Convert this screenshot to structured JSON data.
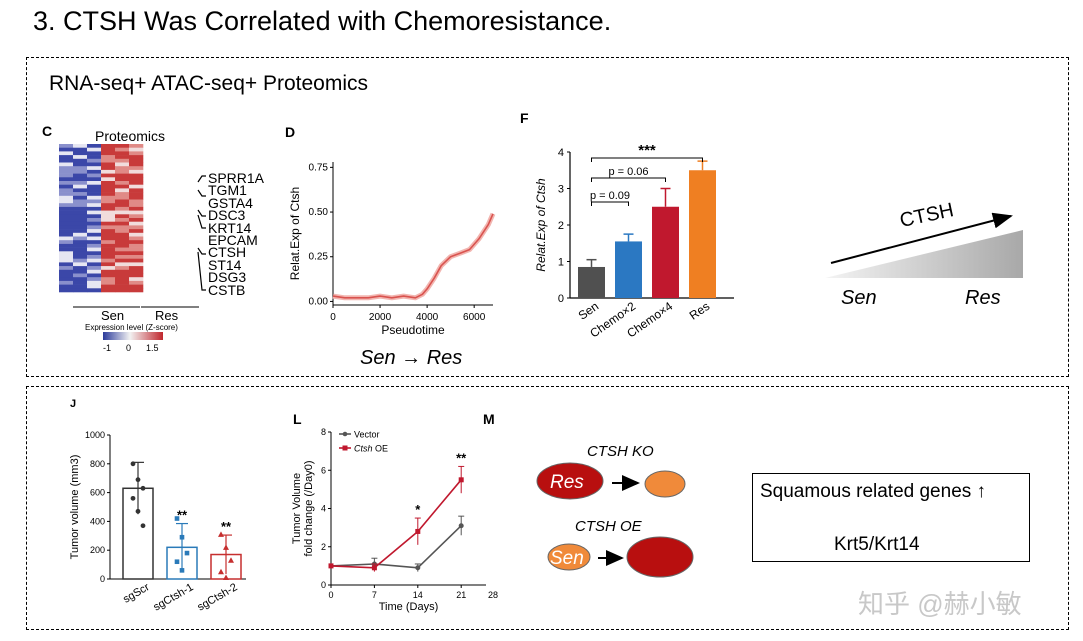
{
  "slide": {
    "title": "3. CTSH Was Correlated with Chemoresistance.",
    "subtitle": "RNA-seq+ ATAC-seq+ Proteomics"
  },
  "panel_c": {
    "letter": "C",
    "title": "Proteomics",
    "groups": [
      "Sen",
      "Res"
    ],
    "genes": [
      "SPRR1A",
      "TGM1",
      "GSTA4",
      "DSC3",
      "KRT14",
      "EPCAM",
      "CTSH",
      "ST14",
      "DSG3",
      "CSTB"
    ],
    "colorbar_label": "Expression level (Z-score)",
    "colorbar_ticks": [
      "-1",
      "0",
      "1.5"
    ],
    "colors": {
      "low": "#2b3a9b",
      "mid": "#f2f2f2",
      "high": "#c0272d"
    }
  },
  "panel_d": {
    "letter": "D",
    "caption": "Sen → Res"
  },
  "panel_f": {
    "letter": "F",
    "stars": "***",
    "p1": "p = 0.06",
    "p2": "p = 0.09"
  },
  "panel_j": {
    "letter": "J"
  },
  "panel_l": {
    "letter": "L"
  },
  "panel_m": {
    "letter": "M"
  },
  "trend": {
    "label": "CTSH",
    "left": "Sen",
    "right": "Res"
  },
  "ko_oe": {
    "ko_label": "CTSH KO",
    "oe_label": "CTSH OE",
    "res_label": "Res",
    "sen_label": "Sen",
    "colors": {
      "res": "#b80f0f",
      "sen": "#f08a3a"
    }
  },
  "conclusion": {
    "line1": "Squamous related genes ↑",
    "line2": "Krt5/Krt14"
  },
  "watermark": "知乎 @赫小敏",
  "chart_data": [
    {
      "id": "D",
      "type": "line",
      "title": "",
      "xlabel": "Pseudotime",
      "ylabel": "Relat.Exp of Ctsh",
      "xlim": [
        0,
        6800
      ],
      "ylim": [
        -0.02,
        0.78
      ],
      "xticks": [
        0,
        2000,
        4000,
        6000
      ],
      "yticks": [
        0.0,
        0.25,
        0.5,
        0.75
      ],
      "ytick_labels": [
        "0.00",
        "0.25",
        "0.50",
        "0.75"
      ],
      "series": [
        {
          "name": "Ctsh",
          "color": "#d9534f",
          "x": [
            0,
            500,
            1000,
            1500,
            2000,
            2500,
            3000,
            3500,
            3800,
            4000,
            4300,
            4600,
            5000,
            5400,
            5800,
            6200,
            6600,
            6800
          ],
          "y": [
            0.03,
            0.02,
            0.02,
            0.02,
            0.03,
            0.02,
            0.03,
            0.02,
            0.04,
            0.07,
            0.13,
            0.2,
            0.25,
            0.27,
            0.29,
            0.35,
            0.43,
            0.49
          ]
        }
      ]
    },
    {
      "id": "F",
      "type": "bar",
      "title": "",
      "xlabel": "",
      "ylabel": "Relat.Exp of Ctsh",
      "ylim": [
        0,
        4
      ],
      "yticks": [
        0,
        1,
        2,
        3,
        4
      ],
      "categories": [
        "Sen",
        "Chemo×2",
        "Chemo×4",
        "Res"
      ],
      "values": [
        0.85,
        1.55,
        2.5,
        3.5
      ],
      "errors": [
        0.2,
        0.2,
        0.5,
        0.25
      ],
      "colors": [
        "#505050",
        "#2b78c2",
        "#c0182e",
        "#ef7f22"
      ],
      "annotations": [
        "***",
        "p = 0.06",
        "p = 0.09"
      ]
    },
    {
      "id": "J",
      "type": "bar",
      "title": "",
      "xlabel": "",
      "ylabel": "Tumor volume (mm3)",
      "ylim": [
        0,
        1000
      ],
      "yticks": [
        0,
        200,
        400,
        600,
        800,
        1000
      ],
      "categories": [
        "sgScr",
        "sgCtsh-1",
        "sgCtsh-2"
      ],
      "values": [
        630,
        220,
        170
      ],
      "errors": [
        180,
        165,
        135
      ],
      "colors": [
        "#333333",
        "#2a7ab9",
        "#c62f2f"
      ],
      "significance": [
        "",
        "**",
        "**"
      ],
      "points": [
        [
          800,
          690,
          630,
          560,
          470,
          370
        ],
        [
          420,
          290,
          180,
          120,
          60
        ],
        [
          310,
          220,
          130,
          50,
          10
        ]
      ]
    },
    {
      "id": "L",
      "type": "line",
      "title": "",
      "xlabel": "Time (Days)",
      "ylabel": "Tumor Volume fold change (/Day0)",
      "xlim": [
        0,
        25
      ],
      "ylim": [
        0,
        8
      ],
      "xticks": [
        0,
        7,
        14,
        21,
        28
      ],
      "xtick_labels": [
        "0",
        "7",
        "14",
        "21",
        "28"
      ],
      "yticks": [
        0,
        2,
        4,
        6,
        8
      ],
      "series": [
        {
          "name": "Vector",
          "color": "#555555",
          "x": [
            0,
            7,
            14,
            21
          ],
          "y": [
            1.0,
            1.1,
            0.9,
            3.1
          ],
          "err": [
            0,
            0.3,
            0.2,
            0.5
          ]
        },
        {
          "name": "Ctsh OE",
          "color": "#c0182e",
          "x": [
            0,
            7,
            14,
            21
          ],
          "y": [
            1.0,
            0.9,
            2.8,
            5.5
          ],
          "err": [
            0,
            0.2,
            0.7,
            0.7
          ]
        }
      ],
      "significance": [
        {
          "x": 14,
          "label": "*"
        },
        {
          "x": 21,
          "label": "**"
        }
      ]
    }
  ]
}
